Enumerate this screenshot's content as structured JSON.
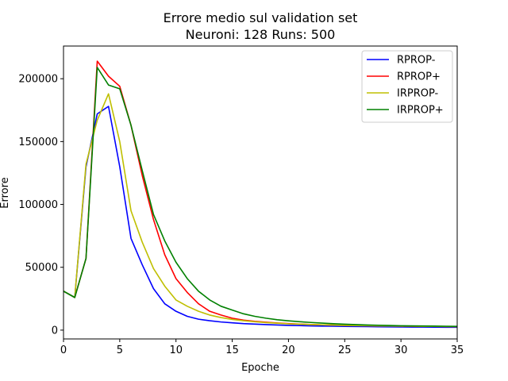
{
  "chart_data": {
    "type": "line",
    "title": "Errore medio sul validation set",
    "subtitle": "Neuroni: 128 Runs: 500",
    "xlabel": "Epoche",
    "ylabel": "Errore",
    "xlim": [
      0,
      35
    ],
    "ylim": [
      -7000,
      226000
    ],
    "xticks": [
      0,
      5,
      10,
      15,
      20,
      25,
      30,
      35
    ],
    "yticks": [
      0,
      50000,
      100000,
      150000,
      200000
    ],
    "grid": false,
    "legend_position": "top-right",
    "x": [
      0,
      1,
      2,
      3,
      4,
      5,
      6,
      7,
      8,
      9,
      10,
      11,
      12,
      13,
      14,
      15,
      16,
      17,
      18,
      19,
      20,
      21,
      22,
      23,
      24,
      25,
      26,
      27,
      28,
      29,
      30,
      31,
      32,
      33,
      34,
      35
    ],
    "series": [
      {
        "name": "RPROP-",
        "color": "#0000ff",
        "values": [
          31000,
          26000,
          130000,
          172000,
          178000,
          130000,
          73000,
          52000,
          33000,
          21000,
          15000,
          11000,
          8700,
          7500,
          6500,
          5800,
          5200,
          4800,
          4400,
          4100,
          3800,
          3600,
          3400,
          3200,
          3100,
          3000,
          2900,
          2800,
          2700,
          2600,
          2500,
          2450,
          2400,
          2350,
          2300,
          2250
        ]
      },
      {
        "name": "RPROP+",
        "color": "#ff0000",
        "values": [
          31000,
          26000,
          57000,
          214000,
          202000,
          194000,
          163000,
          123000,
          88000,
          60000,
          41000,
          30000,
          21000,
          15000,
          12000,
          9500,
          8000,
          7000,
          6300,
          5700,
          5200,
          4800,
          4500,
          4200,
          4000,
          3800,
          3600,
          3500,
          3400,
          3300,
          3200,
          3100,
          3000,
          2950,
          2900,
          2850
        ]
      },
      {
        "name": "IRPROP-",
        "color": "#bfbf00",
        "values": [
          31000,
          26000,
          132000,
          167000,
          188000,
          150000,
          95000,
          70000,
          49000,
          35000,
          24000,
          19000,
          15000,
          12000,
          10000,
          8500,
          7500,
          6700,
          6000,
          5500,
          5000,
          4700,
          4400,
          4200,
          4000,
          3800,
          3600,
          3500,
          3400,
          3300,
          3200,
          3100,
          3000,
          2950,
          2900,
          2850
        ]
      },
      {
        "name": "IRPROP+",
        "color": "#008000",
        "values": [
          31000,
          26000,
          57000,
          209000,
          195000,
          192000,
          163000,
          127000,
          92000,
          71000,
          54000,
          41000,
          31000,
          24000,
          19000,
          16000,
          13000,
          11000,
          9500,
          8300,
          7400,
          6700,
          6100,
          5600,
          5100,
          4700,
          4400,
          4100,
          3900,
          3700,
          3500,
          3400,
          3300,
          3200,
          3100,
          3000
        ]
      }
    ]
  }
}
